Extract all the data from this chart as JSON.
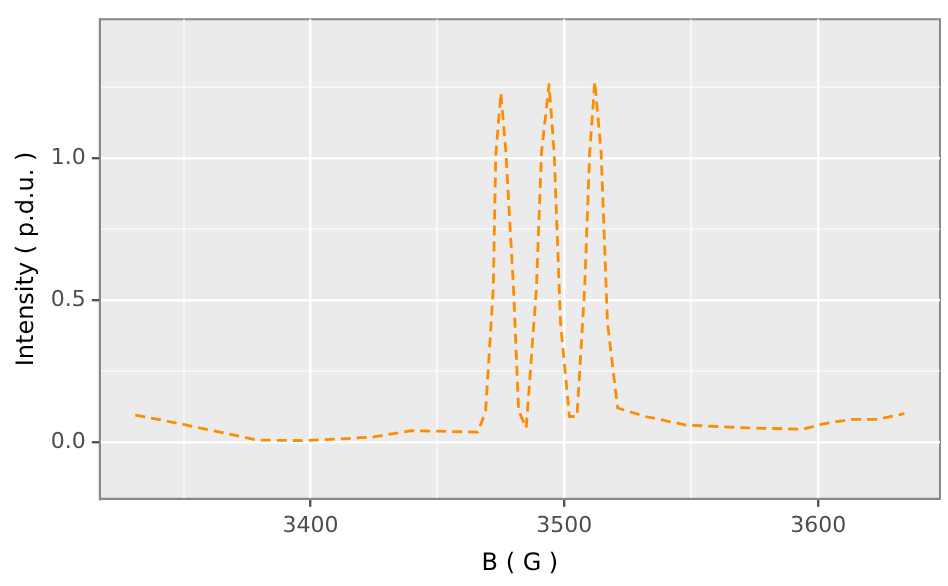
{
  "chart_data": {
    "type": "line",
    "xlabel": "B ( G )",
    "ylabel": "Intensity ( p.d.u. )",
    "x": [
      3331,
      3349,
      3379,
      3398,
      3424,
      3440,
      3466,
      3469,
      3472,
      3473,
      3475,
      3477,
      3480,
      3482,
      3485,
      3489,
      3491,
      3494,
      3496,
      3498.5,
      3502,
      3505,
      3508,
      3510,
      3512,
      3514.5,
      3517,
      3521,
      3532,
      3548,
      3572,
      3594,
      3602,
      3613,
      3623,
      3634
    ],
    "series": [
      {
        "color": "#ff8c00",
        "values": [
          0.095,
          0.064,
          0.007,
          0.005,
          0.017,
          0.04,
          0.035,
          0.11,
          0.54,
          1.01,
          1.23,
          1.02,
          0.54,
          0.11,
          0.05,
          0.54,
          1.02,
          1.26,
          1.02,
          0.42,
          0.09,
          0.09,
          0.54,
          1.02,
          1.27,
          1.02,
          0.42,
          0.12,
          0.09,
          0.06,
          0.05,
          0.045,
          0.064,
          0.08,
          0.08,
          0.1
        ]
      }
    ],
    "xlim": [
      3317,
      3648
    ],
    "ylim": [
      -0.2,
      1.49
    ],
    "xticks": [
      {
        "value": 3350,
        "label": null
      },
      3400,
      {
        "value": 3450,
        "label": null
      },
      3500,
      {
        "value": 3550,
        "label": null
      },
      3600
    ],
    "yticks": [
      {
        "value": 0,
        "label": "0.0"
      },
      {
        "value": 0.25,
        "label": null
      },
      {
        "value": 0.5,
        "label": "0.5"
      },
      {
        "value": 0.75,
        "label": null
      },
      {
        "value": 1,
        "label": "1.0"
      },
      {
        "value": 1.25,
        "label": null
      }
    ],
    "grid": true,
    "legend": false,
    "marker": "none",
    "line_style": "dashed"
  }
}
